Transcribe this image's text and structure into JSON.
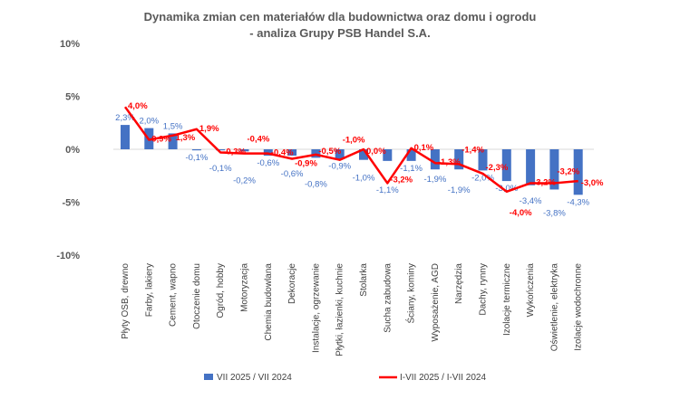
{
  "chart_data": {
    "type": "bar+line",
    "title": [
      "Dynamika zmian cen materiałów dla budownictwa oraz domu i ogrodu",
      "- analiza Grupy PSB Handel S.A."
    ],
    "ylim": [
      -10,
      10
    ],
    "yticks": [
      "10%",
      "5%",
      "0%",
      "-5%",
      "-10%"
    ],
    "yticks_values": [
      10,
      5,
      0,
      -5,
      -10
    ],
    "grid": false,
    "legend": "bottom",
    "categories": [
      "Płyty OSB, drewno",
      "Farby, lakiery",
      "Cement, wapno",
      "Otoczenie domu",
      "Ogród, hobby",
      "Motoryzacja",
      "Chemia budowlana",
      "Dekoracje",
      "Instalacje, ogrzewanie",
      "Płytki, łazienki, kuchnie",
      "Stolarka",
      "Sucha zabudowa",
      "Ściany, kominy",
      "Wyposażenie, AGD",
      "Narzędzia",
      "Dachy, rynny",
      "Izolacje termiczne",
      "Wykończenia",
      "Oświetlenie, elektryka",
      "Izolacje wodochronne"
    ],
    "series": [
      {
        "name": "VII 2025 / VII 2024",
        "type": "bar",
        "color": "#4472C4",
        "values": [
          2.3,
          2.0,
          1.5,
          -0.1,
          -0.1,
          -0.2,
          -0.6,
          -0.6,
          -0.8,
          -0.9,
          -1.0,
          -1.1,
          -1.1,
          -1.9,
          -1.9,
          -2.0,
          -3.0,
          -3.4,
          -3.8,
          -4.3
        ]
      },
      {
        "name": "I-VII 2025 / I-VII 2024",
        "type": "line",
        "color": "#FF0000",
        "values": [
          4.0,
          0.9,
          1.3,
          1.9,
          -0.3,
          -0.4,
          -0.4,
          -0.9,
          -0.5,
          -1.0,
          0.0,
          -3.2,
          0.1,
          -1.3,
          -1.4,
          -2.3,
          -4.0,
          -3.2,
          -3.2,
          -3.0
        ]
      }
    ]
  }
}
